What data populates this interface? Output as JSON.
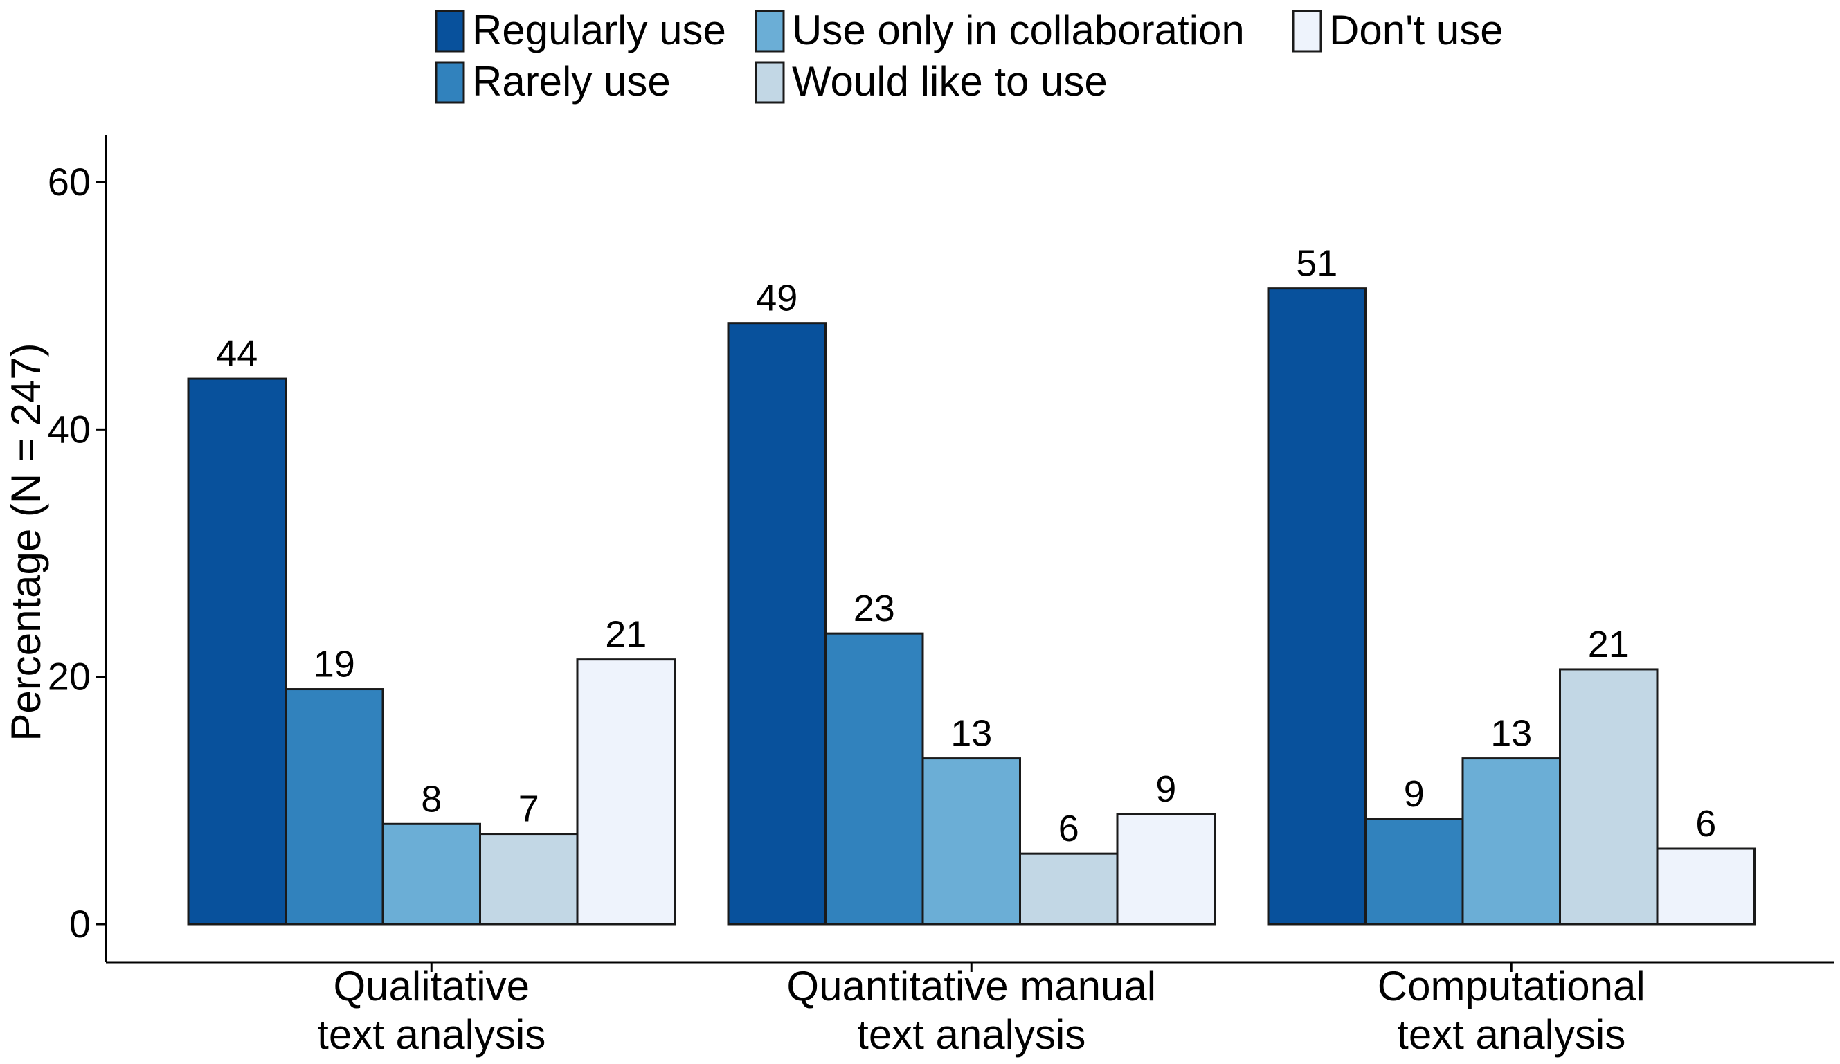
{
  "chart_data": {
    "type": "bar",
    "title": "",
    "xlabel": "",
    "ylabel": "Percentage (N = 247)",
    "ylim": [
      0,
      64
    ],
    "yticks": [
      0,
      20,
      40,
      60
    ],
    "grid": false,
    "legend_position": "top",
    "categories": [
      [
        "Qualitative",
        "text analysis"
      ],
      [
        "Quantitative manual",
        "text analysis"
      ],
      [
        "Computational",
        "text analysis"
      ]
    ],
    "series": [
      {
        "name": "Regularly use",
        "color": "#08519c",
        "values": [
          44,
          49,
          51
        ],
        "exact": [
          44.1,
          48.6,
          51.4
        ]
      },
      {
        "name": "Rarely use",
        "color": "#3182bd",
        "values": [
          19,
          23,
          9
        ],
        "exact": [
          19.0,
          23.5,
          8.5
        ]
      },
      {
        "name": "Use only in collaboration",
        "color": "#6baed6",
        "values": [
          8,
          13,
          13
        ],
        "exact": [
          8.1,
          13.4,
          13.4
        ]
      },
      {
        "name": "Would like to use",
        "color": "#c2d7e5",
        "values": [
          7,
          6,
          21
        ],
        "exact": [
          7.3,
          5.7,
          20.6
        ]
      },
      {
        "name": "Don't use",
        "color": "#eef3fc",
        "values": [
          21,
          9,
          6
        ],
        "exact": [
          21.4,
          8.9,
          6.1
        ]
      }
    ]
  }
}
